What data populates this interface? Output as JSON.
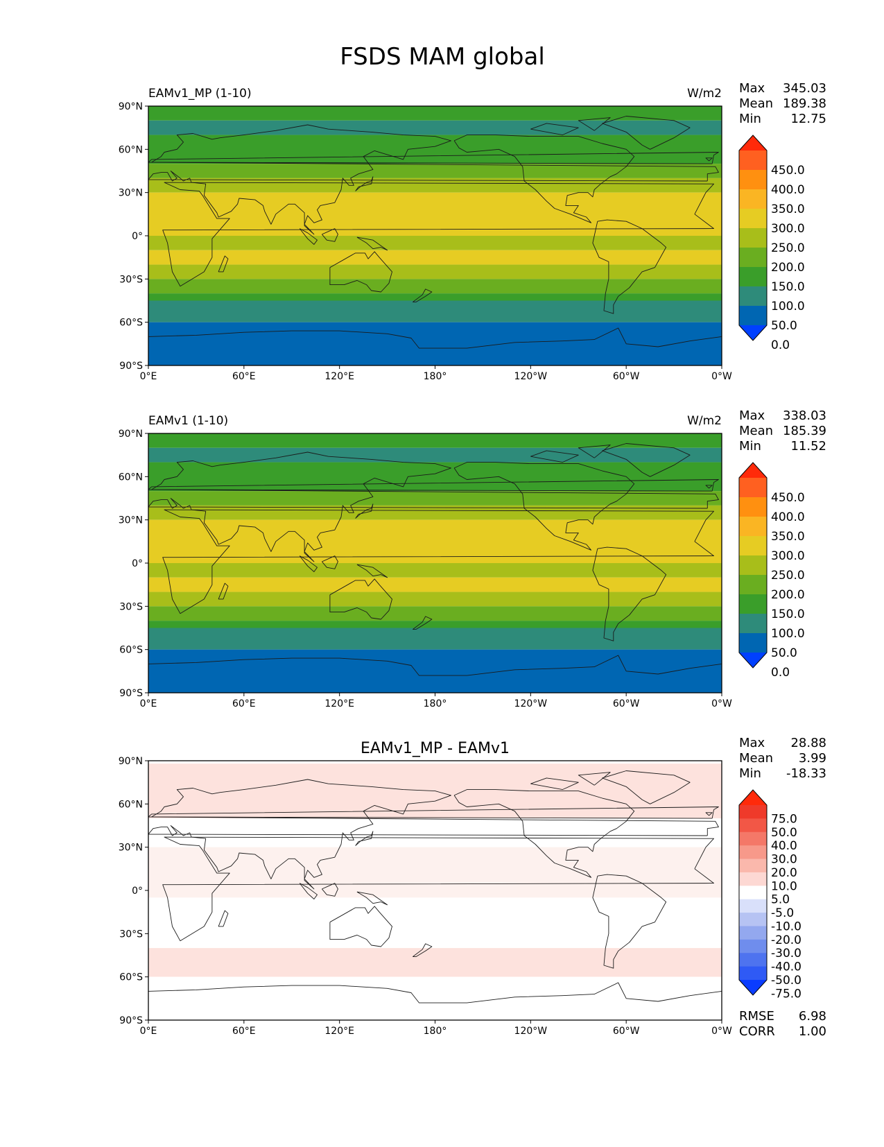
{
  "page_title": "FSDS MAM global",
  "chart_data": [
    {
      "type": "heatmap",
      "name": "panel-test",
      "left_title": "EAMv1_MP (1-10)",
      "center_title": "",
      "units": "W/m2",
      "stats": [
        [
          "Max",
          "345.03"
        ],
        [
          "Mean",
          "189.38"
        ],
        [
          "Min",
          "12.75"
        ]
      ],
      "xticks": [
        "0°E",
        "60°E",
        "120°E",
        "180°",
        "120°W",
        "60°W",
        "0°W"
      ],
      "yticks": [
        "90°N",
        "60°N",
        "30°N",
        "0°",
        "30°S",
        "60°S",
        "90°S"
      ],
      "xlim": [
        0,
        360
      ],
      "ylim": [
        -90,
        90
      ],
      "colorbar": {
        "labels": [
          "450.0",
          "400.0",
          "350.0",
          "300.0",
          "250.0",
          "200.0",
          "150.0",
          "100.0",
          "50.0",
          "0.0"
        ],
        "colors": [
          "#0040ff",
          "#0066b2",
          "#2e8b7a",
          "#3a9e2a",
          "#6aae20",
          "#a8be1a",
          "#e6cc23",
          "#fab523",
          "#ff9010",
          "#ff6020",
          "#ff2a0a"
        ]
      },
      "bands": [
        {
          "lat": [
            80,
            90
          ],
          "color": "#3a9e2a"
        },
        {
          "lat": [
            70,
            80
          ],
          "color": "#2e8b7a"
        },
        {
          "lat": [
            50,
            70
          ],
          "color": "#3a9e2a"
        },
        {
          "lat": [
            40,
            50
          ],
          "color": "#6aae20"
        },
        {
          "lat": [
            30,
            40
          ],
          "color": "#a8be1a"
        },
        {
          "lat": [
            0,
            30
          ],
          "color": "#e6cc23"
        },
        {
          "lat": [
            -10,
            0
          ],
          "color": "#a8be1a"
        },
        {
          "lat": [
            -20,
            -10
          ],
          "color": "#e6cc23"
        },
        {
          "lat": [
            -30,
            -20
          ],
          "color": "#a8be1a"
        },
        {
          "lat": [
            -40,
            -30
          ],
          "color": "#6aae20"
        },
        {
          "lat": [
            -45,
            -40
          ],
          "color": "#3a9e2a"
        },
        {
          "lat": [
            -60,
            -45
          ],
          "color": "#2e8b7a"
        },
        {
          "lat": [
            -90,
            -60
          ],
          "color": "#0066b2"
        }
      ]
    },
    {
      "type": "heatmap",
      "name": "panel-reference",
      "left_title": "EAMv1 (1-10)",
      "center_title": "",
      "units": "W/m2",
      "stats": [
        [
          "Max",
          "338.03"
        ],
        [
          "Mean",
          "185.39"
        ],
        [
          "Min",
          "11.52"
        ]
      ],
      "xticks": [
        "0°E",
        "60°E",
        "120°E",
        "180°",
        "120°W",
        "60°W",
        "0°W"
      ],
      "yticks": [
        "90°N",
        "60°N",
        "30°N",
        "0°",
        "30°S",
        "60°S",
        "90°S"
      ],
      "xlim": [
        0,
        360
      ],
      "ylim": [
        -90,
        90
      ],
      "colorbar": {
        "labels": [
          "450.0",
          "400.0",
          "350.0",
          "300.0",
          "250.0",
          "200.0",
          "150.0",
          "100.0",
          "50.0",
          "0.0"
        ],
        "colors": [
          "#0040ff",
          "#0066b2",
          "#2e8b7a",
          "#3a9e2a",
          "#6aae20",
          "#a8be1a",
          "#e6cc23",
          "#fab523",
          "#ff9010",
          "#ff6020",
          "#ff2a0a"
        ]
      },
      "bands": [
        {
          "lat": [
            80,
            90
          ],
          "color": "#3a9e2a"
        },
        {
          "lat": [
            70,
            80
          ],
          "color": "#2e8b7a"
        },
        {
          "lat": [
            50,
            70
          ],
          "color": "#3a9e2a"
        },
        {
          "lat": [
            40,
            50
          ],
          "color": "#6aae20"
        },
        {
          "lat": [
            30,
            40
          ],
          "color": "#a8be1a"
        },
        {
          "lat": [
            0,
            30
          ],
          "color": "#e6cc23"
        },
        {
          "lat": [
            -10,
            0
          ],
          "color": "#a8be1a"
        },
        {
          "lat": [
            -20,
            -10
          ],
          "color": "#e6cc23"
        },
        {
          "lat": [
            -30,
            -20
          ],
          "color": "#a8be1a"
        },
        {
          "lat": [
            -40,
            -30
          ],
          "color": "#6aae20"
        },
        {
          "lat": [
            -45,
            -40
          ],
          "color": "#3a9e2a"
        },
        {
          "lat": [
            -60,
            -45
          ],
          "color": "#2e8b7a"
        },
        {
          "lat": [
            -90,
            -60
          ],
          "color": "#0066b2"
        }
      ]
    },
    {
      "type": "heatmap",
      "name": "panel-difference",
      "left_title": "",
      "center_title": "EAMv1_MP - EAMv1",
      "units": "",
      "stats": [
        [
          "Max",
          "28.88"
        ],
        [
          "Mean",
          "3.99"
        ],
        [
          "Min",
          "-18.33"
        ]
      ],
      "extra_stats": [
        [
          "RMSE",
          "6.98"
        ],
        [
          "CORR",
          "1.00"
        ]
      ],
      "xticks": [
        "0°E",
        "60°E",
        "120°E",
        "180°",
        "120°W",
        "60°W",
        "0°W"
      ],
      "yticks": [
        "90°N",
        "60°N",
        "30°N",
        "0°",
        "30°S",
        "60°S",
        "90°S"
      ],
      "xlim": [
        0,
        360
      ],
      "ylim": [
        -90,
        90
      ],
      "colorbar": {
        "labels": [
          "75.0",
          "50.0",
          "40.0",
          "30.0",
          "20.0",
          "10.0",
          "5.0",
          "-5.0",
          "-10.0",
          "-20.0",
          "-30.0",
          "-40.0",
          "-50.0",
          "-75.0"
        ],
        "colors": [
          "#0a3cff",
          "#2f5af5",
          "#4e73ef",
          "#6f8ded",
          "#93a8ef",
          "#b6c3f3",
          "#d9e0fa",
          "#ffffff",
          "#fdd8d3",
          "#fab8ac",
          "#f7998a",
          "#f47868",
          "#f25746",
          "#ef3a2a",
          "#ff2a0a"
        ]
      },
      "bands": [
        {
          "lat": [
            88,
            90
          ],
          "color": "#ffffff"
        },
        {
          "lat": [
            50,
            88
          ],
          "color": "#fde2dd"
        },
        {
          "lat": [
            30,
            50
          ],
          "color": "#ffffff"
        },
        {
          "lat": [
            -5,
            30
          ],
          "color": "#fdf1ee"
        },
        {
          "lat": [
            -40,
            -5
          ],
          "color": "#ffffff"
        },
        {
          "lat": [
            -60,
            -40
          ],
          "color": "#fde2dd"
        },
        {
          "lat": [
            -90,
            -60
          ],
          "color": "#ffffff"
        }
      ]
    }
  ]
}
